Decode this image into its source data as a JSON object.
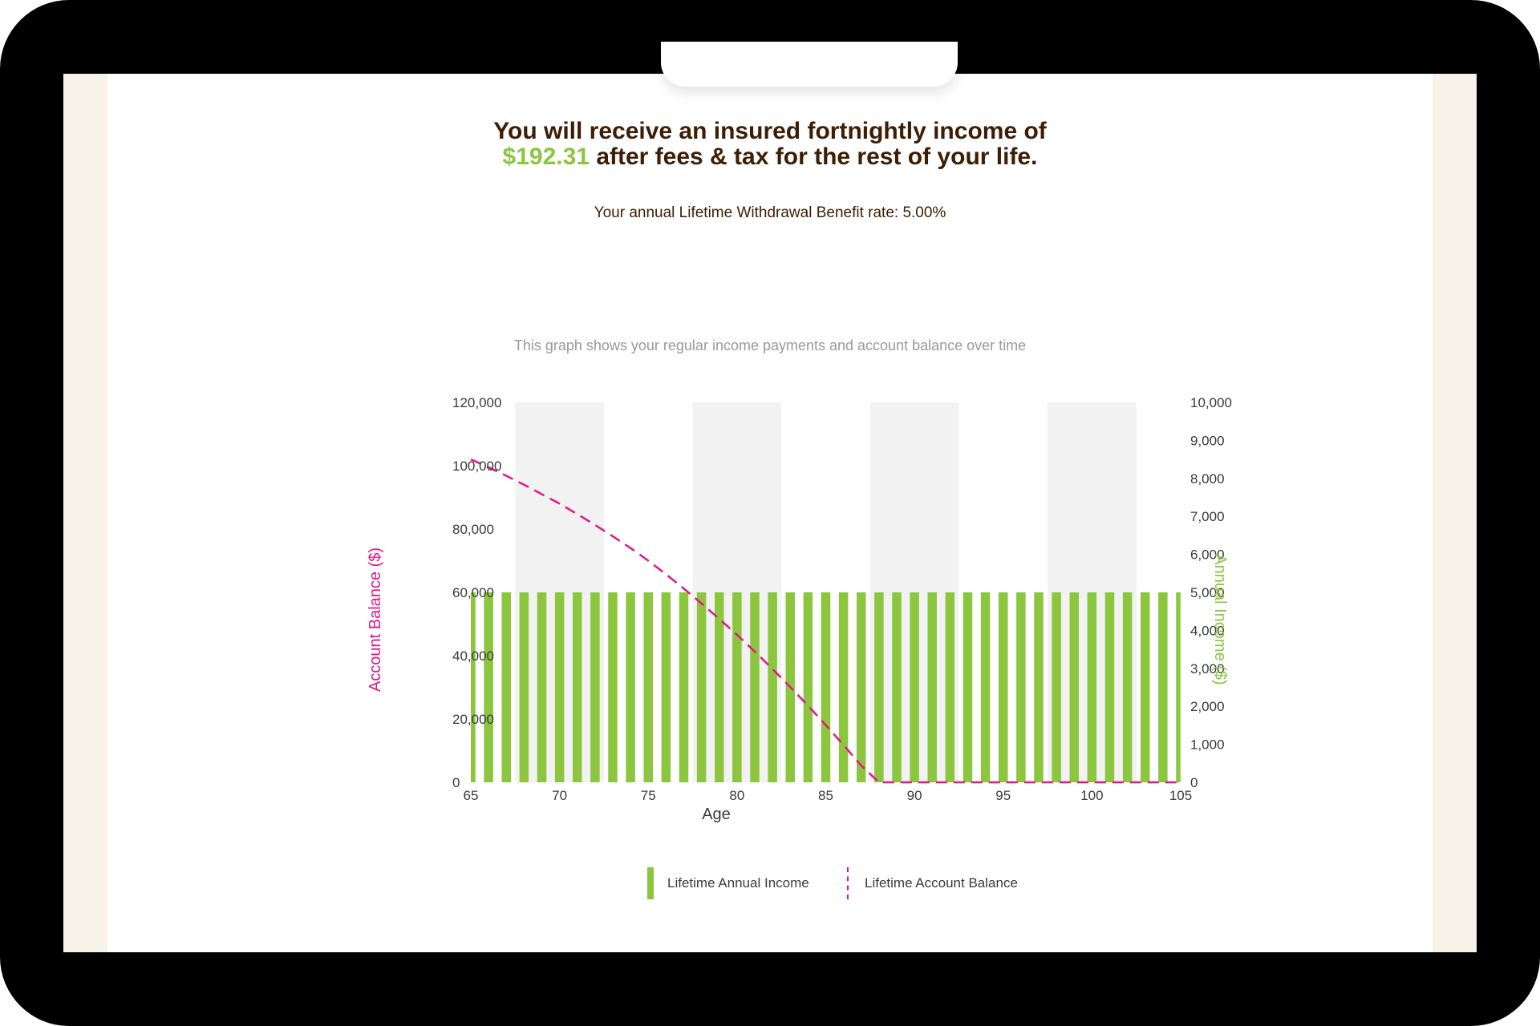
{
  "headline": {
    "line1": "You will receive an insured fortnightly income of",
    "amount": "$192.31",
    "line2_rest": " after fees & tax for the rest of your life."
  },
  "benefit_rate_text": "Your annual Lifetime Withdrawal Benefit rate: 5.00%",
  "graph_caption": "This graph shows your regular income payments and account balance over time",
  "legend": {
    "income": "Lifetime Annual Income",
    "balance": "Lifetime Account Balance"
  },
  "colors": {
    "income": "#8cc63f",
    "balance": "#e4148c",
    "headline": "#3d1d04",
    "band": "#f2f2f2"
  },
  "chart_data": {
    "type": "bar",
    "xlabel": "Age",
    "ylabel_left": "Account Balance ($)",
    "ylabel_right": "Annual Income ($)",
    "x_ticks": [
      65,
      70,
      75,
      80,
      85,
      90,
      95,
      100,
      105
    ],
    "x_range": [
      65,
      105
    ],
    "y_left_ticks": [
      0,
      20000,
      40000,
      60000,
      80000,
      100000,
      120000
    ],
    "y_left_tick_labels": [
      "0",
      "20,000",
      "40,000",
      "60,000",
      "80,000",
      "100,000",
      "120,000"
    ],
    "y_left_range": [
      0,
      120000
    ],
    "y_right_ticks": [
      0,
      1000,
      2000,
      3000,
      4000,
      5000,
      6000,
      7000,
      8000,
      9000,
      10000
    ],
    "y_right_tick_labels": [
      "0",
      "1,000",
      "2,000",
      "3,000",
      "4,000",
      "5,000",
      "6,000",
      "7,000",
      "8,000",
      "9,000",
      "10,000"
    ],
    "y_right_range": [
      0,
      10000
    ],
    "shaded_bands": [
      [
        67.5,
        72.5
      ],
      [
        77.5,
        82.5
      ],
      [
        87.5,
        92.5
      ],
      [
        97.5,
        102.5
      ]
    ],
    "series": [
      {
        "name": "Lifetime Annual Income",
        "type": "bar",
        "axis": "right",
        "x": [
          65,
          66,
          67,
          68,
          69,
          70,
          71,
          72,
          73,
          74,
          75,
          76,
          77,
          78,
          79,
          80,
          81,
          82,
          83,
          84,
          85,
          86,
          87,
          88,
          89,
          90,
          91,
          92,
          93,
          94,
          95,
          96,
          97,
          98,
          99,
          100,
          101,
          102,
          103,
          104,
          105
        ],
        "values": [
          5000,
          5000,
          5000,
          5000,
          5000,
          5000,
          5000,
          5000,
          5000,
          5000,
          5000,
          5000,
          5000,
          5000,
          5000,
          5000,
          5000,
          5000,
          5000,
          5000,
          5000,
          5000,
          5000,
          5000,
          5000,
          5000,
          5000,
          5000,
          5000,
          5000,
          5000,
          5000,
          5000,
          5000,
          5000,
          5000,
          5000,
          5000,
          5000,
          5000,
          5000
        ]
      },
      {
        "name": "Lifetime Account Balance",
        "type": "line",
        "style": "dashed",
        "axis": "left",
        "x": [
          65,
          66,
          67,
          68,
          69,
          70,
          71,
          72,
          73,
          74,
          75,
          76,
          77,
          78,
          79,
          80,
          81,
          82,
          83,
          84,
          85,
          86,
          87,
          88,
          89,
          90,
          91,
          92,
          93,
          94,
          95,
          96,
          97,
          98,
          99,
          100,
          101,
          102,
          103,
          104,
          105
        ],
        "values": [
          102000,
          99500,
          96800,
          94000,
          91000,
          88000,
          84700,
          81300,
          77700,
          74000,
          70000,
          65700,
          61200,
          56500,
          51600,
          46600,
          41300,
          35800,
          30100,
          24200,
          18100,
          11800,
          5300,
          0,
          0,
          0,
          0,
          0,
          0,
          0,
          0,
          0,
          0,
          0,
          0,
          0,
          0,
          0,
          0,
          0,
          0
        ]
      }
    ]
  }
}
